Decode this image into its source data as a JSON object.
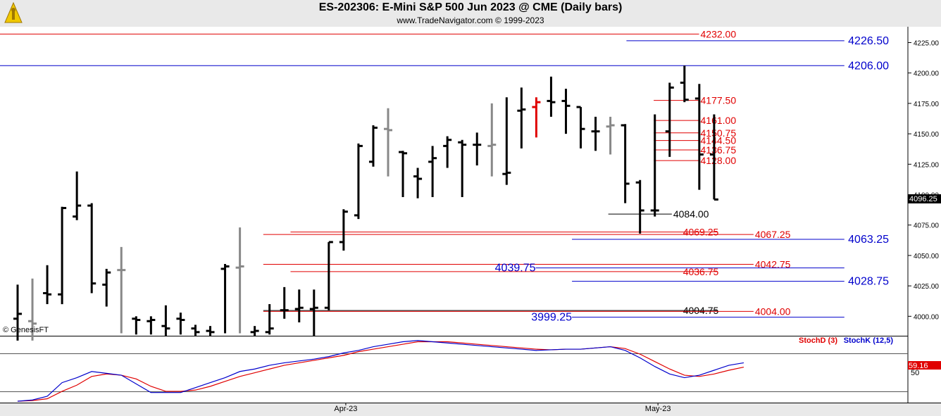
{
  "header": {
    "title": "ES-202306:  E-Mini S&P 500 Jun 2023 @ CME  (Daily bars)",
    "subtitle": "www.TradeNavigator.com © 1999-2023"
  },
  "watermark": "© GenesisFT",
  "colors": {
    "up": "#000000",
    "neutral": "#888888",
    "highlight": "#e00000",
    "red_line": "#e00000",
    "blue_line": "#0000cc",
    "stochD": "#e00000",
    "stochK": "#0000cc"
  },
  "chart_data": {
    "type": "bar",
    "price_axis": {
      "ticks": [
        "4225.00",
        "4200.00",
        "4175.00",
        "4150.00",
        "4125.00",
        "4100.00",
        "4075.00",
        "4050.00",
        "4025.00",
        "4000.00"
      ],
      "ylim": [
        3984,
        4238
      ]
    },
    "last_price": "4096.25",
    "x_labels": [
      "Apr-23",
      "May-23"
    ],
    "bars": [
      {
        "o": 3998,
        "h": 4026,
        "l": 3980,
        "c": 4002,
        "col": "k"
      },
      {
        "o": 3996,
        "h": 4031,
        "l": 3980,
        "c": 3994,
        "col": "g"
      },
      {
        "o": 4019,
        "h": 4042,
        "l": 4010,
        "c": 4018,
        "col": "k"
      },
      {
        "o": 4018,
        "h": 4090,
        "l": 4010,
        "c": 4089,
        "col": "k"
      },
      {
        "o": 4082,
        "h": 4119,
        "l": 4079,
        "c": 4091,
        "col": "k"
      },
      {
        "o": 4091,
        "h": 4093,
        "l": 4019,
        "c": 4027,
        "col": "k"
      },
      {
        "o": 4026,
        "h": 4039,
        "l": 4008,
        "c": 4036,
        "col": "k"
      },
      {
        "o": 4038,
        "h": 4057,
        "l": 3986,
        "c": 4038,
        "col": "g"
      },
      {
        "o": 3998,
        "h": 4000,
        "l": 3985,
        "c": 3997,
        "col": "k"
      },
      {
        "o": 3996,
        "h": 4000,
        "l": 3985,
        "c": 3997,
        "col": "k"
      },
      {
        "o": 3992,
        "h": 4009,
        "l": 3984,
        "c": 3990,
        "col": "k"
      },
      {
        "o": 3998,
        "h": 4003,
        "l": 3985,
        "c": 3997,
        "col": "k"
      },
      {
        "o": 3990,
        "h": 3993,
        "l": 3984,
        "c": 3987,
        "col": "k"
      },
      {
        "o": 3988,
        "h": 3992,
        "l": 3984,
        "c": 3987,
        "col": "k"
      },
      {
        "o": 4039,
        "h": 4043,
        "l": 3986,
        "c": 4041,
        "col": "k"
      },
      {
        "o": 4040,
        "h": 4073,
        "l": 3986,
        "c": 4041,
        "col": "g"
      },
      {
        "o": 3987,
        "h": 3992,
        "l": 3984,
        "c": 3988,
        "col": "k"
      },
      {
        "o": 3987,
        "h": 4010,
        "l": 3985,
        "c": 3990,
        "col": "k"
      },
      {
        "o": 4005,
        "h": 4024,
        "l": 3998,
        "c": 4005,
        "col": "k"
      },
      {
        "o": 4006,
        "h": 4022,
        "l": 3995,
        "c": 4007,
        "col": "k"
      },
      {
        "o": 4006,
        "h": 4022,
        "l": 3984,
        "c": 4007,
        "col": "k"
      },
      {
        "o": 4007,
        "h": 4061,
        "l": 4005,
        "c": 4061,
        "col": "k"
      },
      {
        "o": 4061,
        "h": 4088,
        "l": 4054,
        "c": 4086,
        "col": "k"
      },
      {
        "o": 4083,
        "h": 4142,
        "l": 4080,
        "c": 4140,
        "col": "k"
      },
      {
        "o": 4127,
        "h": 4157,
        "l": 4123,
        "c": 4155,
        "col": "k"
      },
      {
        "o": 4154,
        "h": 4171,
        "l": 4115,
        "c": 4153,
        "col": "g"
      },
      {
        "o": 4135,
        "h": 4136,
        "l": 4098,
        "c": 4134,
        "col": "k"
      },
      {
        "o": 4115,
        "h": 4122,
        "l": 4097,
        "c": 4113,
        "col": "k"
      },
      {
        "o": 4127,
        "h": 4140,
        "l": 4098,
        "c": 4130,
        "col": "k"
      },
      {
        "o": 4140,
        "h": 4148,
        "l": 4122,
        "c": 4145,
        "col": "k"
      },
      {
        "o": 4143,
        "h": 4145,
        "l": 4098,
        "c": 4141,
        "col": "k"
      },
      {
        "o": 4141,
        "h": 4151,
        "l": 4124,
        "c": 4141,
        "col": "k"
      },
      {
        "o": 4140,
        "h": 4175,
        "l": 4115,
        "c": 4141,
        "col": "g"
      },
      {
        "o": 4117,
        "h": 4180,
        "l": 4108,
        "c": 4118,
        "col": "k"
      },
      {
        "o": 4169,
        "h": 4188,
        "l": 4138,
        "c": 4170,
        "col": "k"
      },
      {
        "o": 4172,
        "h": 4180,
        "l": 4147,
        "c": 4176,
        "col": "r"
      },
      {
        "o": 4177,
        "h": 4197,
        "l": 4164,
        "c": 4176,
        "col": "k"
      },
      {
        "o": 4177,
        "h": 4187,
        "l": 4150,
        "c": 4173,
        "col": "k"
      },
      {
        "o": 4172,
        "h": 4172,
        "l": 4138,
        "c": 4154,
        "col": "k"
      },
      {
        "o": 4152,
        "h": 4164,
        "l": 4136,
        "c": 4152,
        "col": "k"
      },
      {
        "o": 4156,
        "h": 4164,
        "l": 4133,
        "c": 4157,
        "col": "g"
      },
      {
        "o": 4157,
        "h": 4158,
        "l": 4093,
        "c": 4109,
        "col": "k"
      },
      {
        "o": 4110,
        "h": 4112,
        "l": 4068,
        "c": 4087,
        "col": "k"
      },
      {
        "o": 4087,
        "h": 4166,
        "l": 4082,
        "c": 4087,
        "col": "k"
      },
      {
        "o": 4152,
        "h": 4192,
        "l": 4131,
        "c": 4188,
        "col": "k"
      },
      {
        "o": 4192,
        "h": 4206,
        "l": 4176,
        "c": 4178,
        "col": "k"
      },
      {
        "o": 4179,
        "h": 4191,
        "l": 4104,
        "c": 4133,
        "col": "k"
      },
      {
        "o": 4133,
        "h": 4166,
        "l": 4096,
        "c": 4096,
        "col": "k"
      }
    ],
    "levels": [
      {
        "value": "4232.00",
        "price": 4232.0,
        "color": "red",
        "x1": 0.0,
        "x2": 0.77,
        "label_pos": "right-inner"
      },
      {
        "value": "4226.50",
        "price": 4226.5,
        "color": "blue",
        "x1": 0.69,
        "x2": 0.93,
        "label_pos": "right-outer"
      },
      {
        "value": "4206.00",
        "price": 4206.0,
        "color": "blue",
        "x1": 0.0,
        "x2": 0.93,
        "label_pos": "right-outer"
      },
      {
        "value": "4177.50",
        "price": 4177.5,
        "color": "red",
        "x1": 0.72,
        "x2": 0.77,
        "label_pos": "right-inner"
      },
      {
        "value": "4161.00",
        "price": 4161.0,
        "color": "red",
        "x1": 0.72,
        "x2": 0.77,
        "label_pos": "right-inner"
      },
      {
        "value": "4150.75",
        "price": 4150.75,
        "color": "red",
        "x1": 0.72,
        "x2": 0.77,
        "label_pos": "right-inner"
      },
      {
        "value": "4144.50",
        "price": 4144.5,
        "color": "red",
        "x1": 0.72,
        "x2": 0.77,
        "label_pos": "right-inner"
      },
      {
        "value": "4136.75",
        "price": 4136.75,
        "color": "red",
        "x1": 0.72,
        "x2": 0.77,
        "label_pos": "right-inner"
      },
      {
        "value": "4128.00",
        "price": 4128.0,
        "color": "red",
        "x1": 0.72,
        "x2": 0.77,
        "label_pos": "right-inner"
      },
      {
        "value": "4084.00",
        "price": 4084.0,
        "color": "black",
        "x1": 0.67,
        "x2": 0.74,
        "label_pos": "right-inner"
      },
      {
        "value": "4069.25",
        "price": 4069.25,
        "color": "red",
        "x1": 0.32,
        "x2": 0.79,
        "label_pos": "right-inner"
      },
      {
        "value": "4067.25",
        "price": 4067.25,
        "color": "red",
        "x1": 0.29,
        "x2": 0.83,
        "label_pos": "right-inner"
      },
      {
        "value": "4063.25",
        "price": 4063.25,
        "color": "blue",
        "x1": 0.63,
        "x2": 0.93,
        "label_pos": "right-outer"
      },
      {
        "value": "4042.75",
        "price": 4042.75,
        "color": "red",
        "x1": 0.29,
        "x2": 0.83,
        "label_pos": "right-inner"
      },
      {
        "value": "4039.75",
        "price": 4039.75,
        "color": "blue",
        "x1": 0.59,
        "x2": 0.93,
        "label_pos": "left-inner"
      },
      {
        "value": "4036.75",
        "price": 4036.75,
        "color": "red",
        "x1": 0.32,
        "x2": 0.79,
        "label_pos": "right-inner"
      },
      {
        "value": "4028.75",
        "price": 4028.75,
        "color": "blue",
        "x1": 0.63,
        "x2": 0.93,
        "label_pos": "right-outer"
      },
      {
        "value": "4004.75",
        "price": 4004.75,
        "color": "black",
        "x1": 0.29,
        "x2": 0.79,
        "label_pos": "right-inner"
      },
      {
        "value": "4004.00",
        "price": 4004.0,
        "color": "red",
        "x1": 0.29,
        "x2": 0.83,
        "label_pos": "right-inner"
      },
      {
        "value": "3999.25",
        "price": 3999.25,
        "color": "blue",
        "x1": 0.63,
        "x2": 0.93,
        "label_pos": "left-inner"
      }
    ],
    "stochastic": {
      "d_label": "StochD (3)",
      "k_label": "StochK (12,5)",
      "tick": "50",
      "last_value": "59.16",
      "k": [
        0,
        2,
        8,
        30,
        38,
        48,
        45,
        42,
        28,
        14,
        14,
        14,
        22,
        30,
        38,
        48,
        52,
        58,
        62,
        65,
        68,
        72,
        78,
        82,
        88,
        92,
        96,
        98,
        96,
        94,
        92,
        90,
        88,
        86,
        84,
        82,
        83,
        84,
        84,
        86,
        88,
        82,
        70,
        56,
        44,
        38,
        42,
        50,
        58,
        62
      ],
      "d": [
        0,
        1,
        4,
        16,
        26,
        40,
        44,
        42,
        36,
        24,
        16,
        16,
        18,
        24,
        32,
        40,
        46,
        52,
        58,
        62,
        66,
        70,
        74,
        80,
        84,
        88,
        92,
        96,
        96,
        96,
        94,
        92,
        90,
        88,
        86,
        84,
        83,
        84,
        84,
        86,
        88,
        85,
        76,
        64,
        52,
        42,
        40,
        44,
        50,
        55
      ]
    }
  }
}
